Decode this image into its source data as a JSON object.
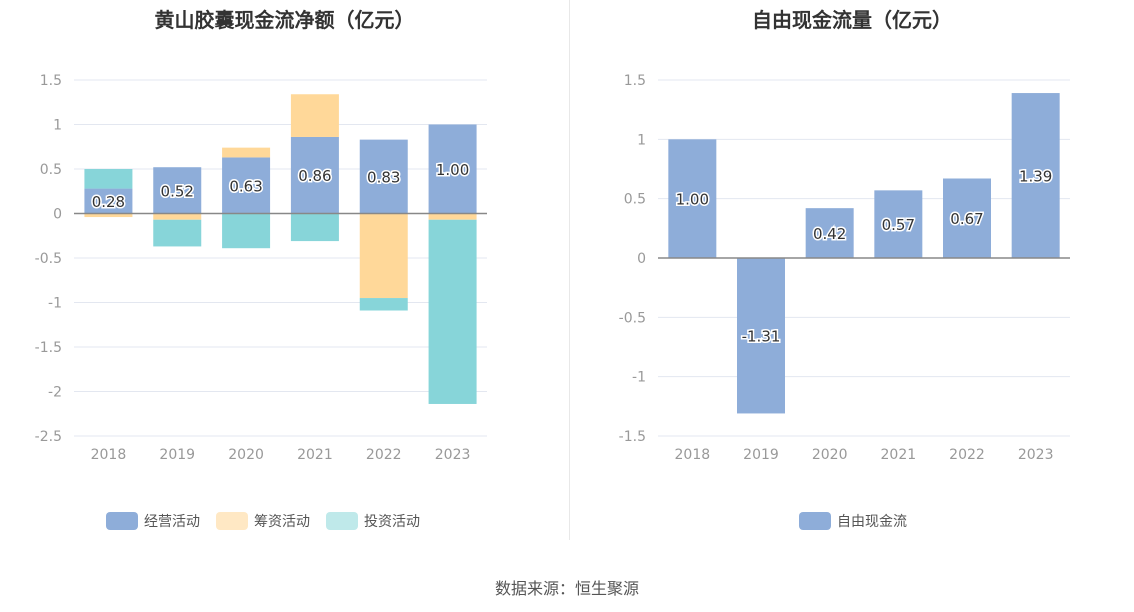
{
  "chart_data": [
    {
      "type": "bar",
      "stacked": true,
      "title": "黄山胶囊现金流净额（亿元）",
      "categories": [
        "2018",
        "2019",
        "2020",
        "2021",
        "2022",
        "2023"
      ],
      "ylim": [
        -2.5,
        1.5
      ],
      "yticks": [
        "1.5",
        "1",
        "0.5",
        "0",
        "-0.5",
        "-1",
        "-1.5",
        "-2",
        "-2.5"
      ],
      "grid": true,
      "legend": "bottom",
      "series": [
        {
          "name": "经营活动",
          "color": "#8eadd9",
          "values": [
            0.28,
            0.52,
            0.63,
            0.86,
            0.83,
            1.0
          ],
          "labels": [
            "0.28",
            "0.52",
            "0.63",
            "0.86",
            "0.83",
            "1.00"
          ]
        },
        {
          "name": "筹资活动",
          "color": "#ffd899",
          "legend_color": "#ffe8c4",
          "values": [
            -0.04,
            -0.07,
            0.11,
            0.48,
            -0.95,
            -0.07
          ]
        },
        {
          "name": "投资活动",
          "color": "#87d5d9",
          "legend_color": "#bfe9ea",
          "values": [
            0.22,
            -0.3,
            -0.39,
            -0.31,
            -0.14,
            -2.07
          ]
        }
      ]
    },
    {
      "type": "bar",
      "title": "自由现金流量（亿元）",
      "categories": [
        "2018",
        "2019",
        "2020",
        "2021",
        "2022",
        "2023"
      ],
      "ylim": [
        -1.5,
        1.5
      ],
      "yticks": [
        "1.5",
        "1",
        "0.5",
        "0",
        "-0.5",
        "-1",
        "-1.5"
      ],
      "grid": true,
      "legend": "bottom",
      "series": [
        {
          "name": "自由现金流",
          "color": "#8eadd9",
          "values": [
            1.0,
            -1.31,
            0.42,
            0.57,
            0.67,
            1.39
          ],
          "labels": [
            "1.00",
            "-1.31",
            "0.42",
            "0.57",
            "0.67",
            "1.39"
          ]
        }
      ]
    }
  ],
  "source": "数据来源：恒生聚源"
}
